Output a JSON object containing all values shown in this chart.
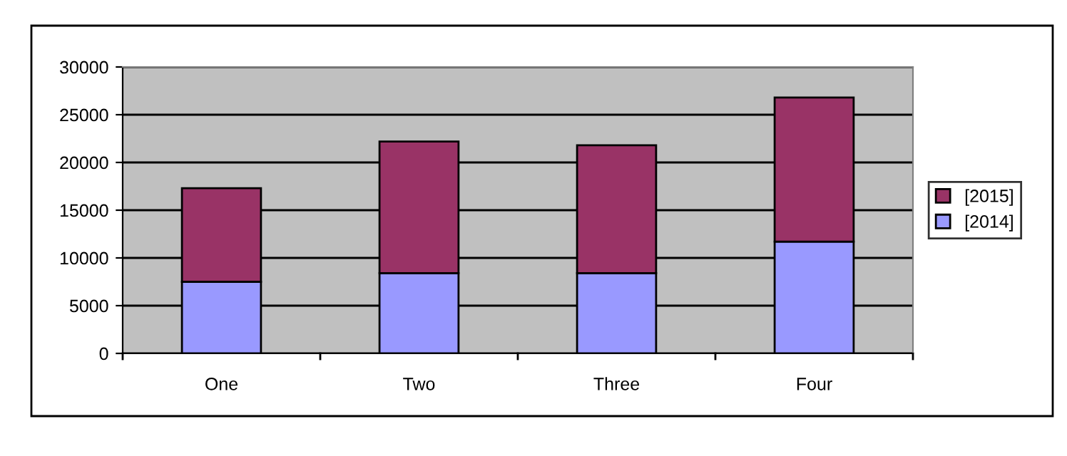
{
  "chart_data": {
    "type": "bar",
    "stacked": true,
    "categories": [
      "One",
      "Two",
      "Three",
      "Four"
    ],
    "series": [
      {
        "name": "[2014]",
        "color": "#9999ff",
        "values": [
          7500,
          8400,
          8400,
          11700
        ]
      },
      {
        "name": "[2015]",
        "color": "#993366",
        "values": [
          9800,
          13800,
          13400,
          15100
        ]
      }
    ],
    "ylim": [
      0,
      30000
    ],
    "yticks": [
      0,
      5000,
      10000,
      15000,
      20000,
      25000,
      30000
    ],
    "grid": "y",
    "legend": "right"
  }
}
